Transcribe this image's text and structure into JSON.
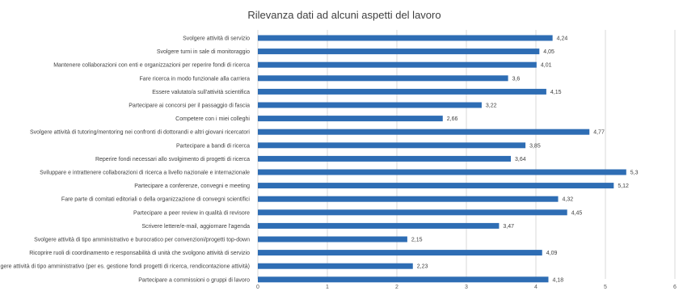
{
  "chart_data": {
    "type": "bar",
    "orientation": "horizontal",
    "title": "Rilevanza dati ad alcuni aspetti del lavoro",
    "xlabel": "",
    "ylabel": "",
    "xlim": [
      0,
      6
    ],
    "x_ticks": [
      "0",
      "1",
      "2",
      "3",
      "4",
      "5",
      "6"
    ],
    "grid": true,
    "legend": "none",
    "bar_color": "#2e6db4",
    "categories": [
      "Svolgere attività di servizio",
      "Svolgere turni in sale di monitoraggio",
      "Mantenere collaborazioni con enti e organizzazioni per reperire fondi di ricerca",
      "Fare ricerca in modo funzionale alla carriera",
      "Essere valutato/a sull'attività scientifica",
      "Partecipare ai concorsi per il passaggio di fascia",
      "Competere con i miei colleghi",
      "Svolgere attività di tutoring/mentoring nei confronti di dottorandi e altri giovani ricercatori",
      "Partecipare a bandi di ricerca",
      "Reperire fondi necessari allo svolgimento di progetti di ricerca",
      "Sviluppare e intrattenere collaborazioni di ricerca a livello nazionale e internazionale",
      "Partecipare a conferenze, convegni e meeting",
      "Fare parte di comitati editoriali o della organizzazione di convegni scientifici",
      "Partecipare a peer review in qualità di revisore",
      "Scrivere lettere/e-mail, aggiornare l'agenda",
      "Svolgere attività di tipo amministrativo e burocratico per convenzioni/progetti top-down",
      "Ricoprire ruoli di coordinamento e responsabilità di unità che svolgono attività di servizio",
      "Svolgere attività di tipo amministrativo (per es. gestione fondi progetti di ricerca, rendicontazione attività)",
      "Partecipare a commissioni o gruppi di lavoro"
    ],
    "values": [
      4.24,
      4.05,
      4.01,
      3.6,
      4.15,
      3.22,
      2.66,
      4.77,
      3.85,
      3.64,
      5.3,
      5.12,
      4.32,
      4.45,
      3.47,
      2.15,
      4.09,
      2.23,
      4.18
    ],
    "value_labels": [
      "4,24",
      "4,05",
      "4,01",
      "3,6",
      "4,15",
      "3,22",
      "2,66",
      "4,77",
      "3,85",
      "3,64",
      "5,3",
      "5,12",
      "4,32",
      "4,45",
      "3,47",
      "2,15",
      "4,09",
      "2,23",
      "4,18"
    ]
  }
}
